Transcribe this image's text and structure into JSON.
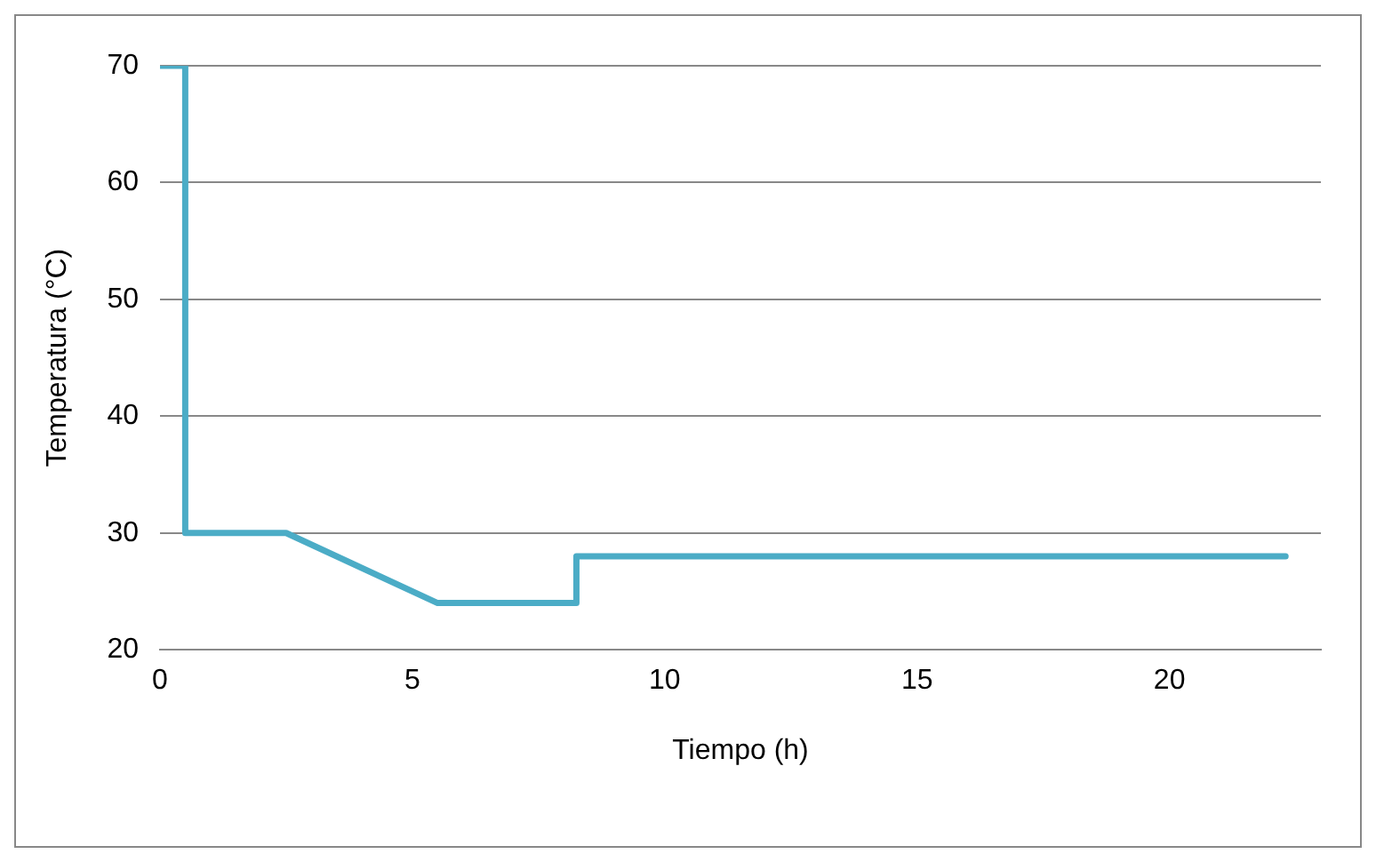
{
  "chart_data": {
    "type": "line",
    "xlabel": "Tiempo (h)",
    "ylabel": "Temperatura (°C)",
    "x": [
      0,
      0.5,
      0.5,
      2.5,
      5.5,
      8.25,
      8.25,
      22.3
    ],
    "series": [
      {
        "color": "#4bacc6",
        "values": [
          70,
          70,
          30,
          30,
          24,
          24,
          28,
          28
        ]
      }
    ],
    "xlim": [
      0,
      23
    ],
    "xticks": [
      0,
      5,
      10,
      15,
      20
    ],
    "ylim": [
      20,
      70
    ],
    "yticks": [
      20,
      30,
      40,
      50,
      60,
      70
    ],
    "grid": "y",
    "legend": false,
    "marker": "none",
    "line_style": "solid"
  }
}
